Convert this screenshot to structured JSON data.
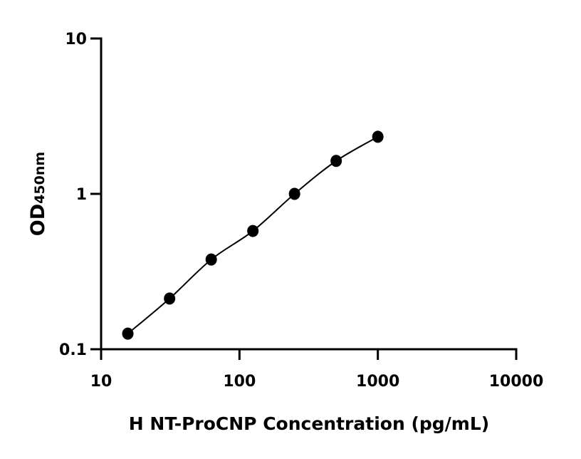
{
  "chart_data": {
    "type": "scatter",
    "title": "",
    "xlabel": "H NT-ProCNP Concentration (pg/mL)",
    "ylabel": "OD",
    "ylabel_subscript": "450nm",
    "x_scale": "log",
    "y_scale": "log",
    "xlim": [
      10,
      10000
    ],
    "ylim": [
      0.1,
      10
    ],
    "x_ticks": [
      "10",
      "100",
      "1000",
      "10000"
    ],
    "y_ticks": [
      "0.1",
      "1",
      "10"
    ],
    "grid": false,
    "fit_line": true,
    "series": [
      {
        "x": [
          15.6,
          31.25,
          62.5,
          125,
          250,
          500,
          1000
        ],
        "y": [
          0.126,
          0.212,
          0.378,
          0.577,
          1.0,
          1.63,
          2.33
        ]
      }
    ],
    "colors": {
      "marker": "#000000",
      "line": "#000000",
      "axis": "#000000"
    }
  }
}
